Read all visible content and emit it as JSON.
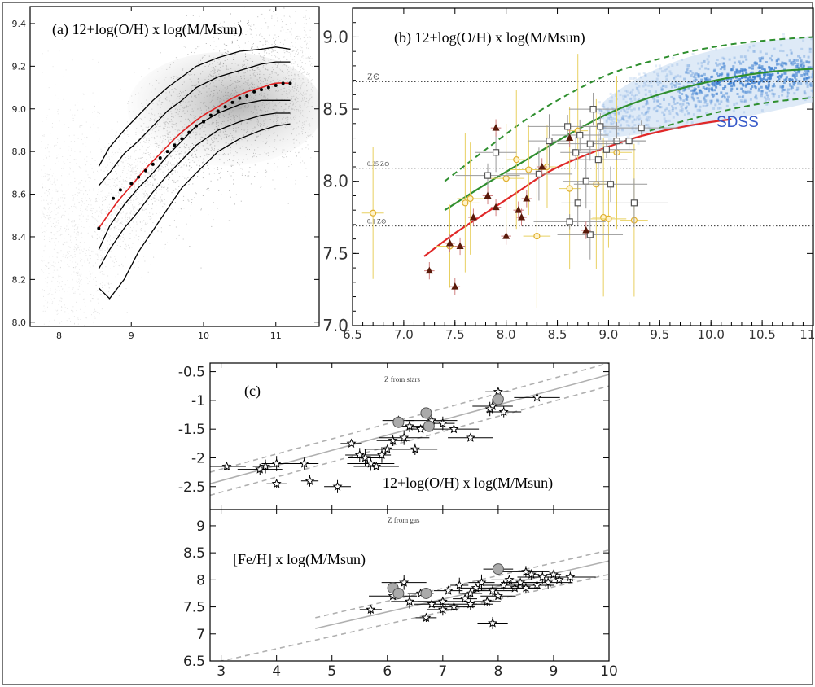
{
  "chart_data": [
    {
      "id": "a",
      "type": "scatter",
      "title": "(a) 12+log(O/H) x log(M/Msun)",
      "xlim": [
        7.6,
        11.6
      ],
      "ylim": [
        7.98,
        9.48
      ],
      "xticks": [
        "8",
        "9",
        "10",
        "11"
      ],
      "yticks": [
        "8.0",
        "8.2",
        "8.4",
        "8.6",
        "8.8",
        "9.0",
        "9.2",
        "9.4"
      ],
      "colors": {
        "points": "#9a9a9a",
        "contours": "#000000",
        "median_fit": "#e02020",
        "median_points": "#000000"
      },
      "contours": [
        {
          "x": [
            8.55,
            8.7,
            8.9,
            9.1,
            9.3,
            9.5,
            9.7,
            9.9,
            10.2,
            10.5,
            10.8,
            11.0,
            11.2
          ],
          "y": [
            8.73,
            8.82,
            8.9,
            8.97,
            9.04,
            9.1,
            9.15,
            9.2,
            9.24,
            9.27,
            9.28,
            9.29,
            9.28
          ]
        },
        {
          "x": [
            8.55,
            8.7,
            8.9,
            9.1,
            9.3,
            9.5,
            9.7,
            9.9,
            10.2,
            10.5,
            10.8,
            11.0,
            11.2
          ],
          "y": [
            8.64,
            8.7,
            8.79,
            8.85,
            8.92,
            8.99,
            9.04,
            9.1,
            9.15,
            9.18,
            9.21,
            9.22,
            9.22
          ]
        },
        {
          "x": [
            8.55,
            8.7,
            8.9,
            9.1,
            9.3,
            9.5,
            9.7,
            9.9,
            10.2,
            10.5,
            10.8,
            11.0,
            11.2
          ],
          "y": [
            8.34,
            8.45,
            8.55,
            8.63,
            8.7,
            8.78,
            8.85,
            8.92,
            8.98,
            9.02,
            9.04,
            9.04,
            9.04
          ]
        },
        {
          "x": [
            8.55,
            8.7,
            8.9,
            9.1,
            9.3,
            9.5,
            9.7,
            9.9,
            10.2,
            10.5,
            10.8,
            11.0,
            11.2
          ],
          "y": [
            8.25,
            8.34,
            8.44,
            8.52,
            8.61,
            8.69,
            8.76,
            8.83,
            8.9,
            8.94,
            8.97,
            8.98,
            8.98
          ]
        },
        {
          "x": [
            8.55,
            8.7,
            8.9,
            9.1,
            9.3,
            9.5,
            9.7,
            9.9,
            10.2,
            10.5,
            10.8,
            11.0,
            11.2
          ],
          "y": [
            8.16,
            8.11,
            8.2,
            8.33,
            8.43,
            8.53,
            8.63,
            8.7,
            8.8,
            8.86,
            8.9,
            8.92,
            8.93
          ]
        }
      ],
      "median_fit": {
        "x": [
          8.55,
          8.8,
          9.0,
          9.2,
          9.4,
          9.6,
          9.8,
          10.0,
          10.2,
          10.4,
          10.6,
          10.8,
          11.0,
          11.2
        ],
        "y": [
          8.44,
          8.56,
          8.64,
          8.72,
          8.79,
          8.86,
          8.92,
          8.97,
          9.01,
          9.05,
          9.08,
          9.1,
          9.12,
          9.12
        ]
      },
      "median_points": {
        "x": [
          8.55,
          8.75,
          8.85,
          9.0,
          9.1,
          9.2,
          9.3,
          9.4,
          9.5,
          9.6,
          9.7,
          9.8,
          9.9,
          10.0,
          10.1,
          10.2,
          10.3,
          10.4,
          10.5,
          10.6,
          10.7,
          10.8,
          10.9,
          11.0,
          11.1,
          11.2
        ],
        "y": [
          8.44,
          8.58,
          8.62,
          8.65,
          8.68,
          8.71,
          8.74,
          8.77,
          8.8,
          8.83,
          8.86,
          8.89,
          8.92,
          8.94,
          8.97,
          8.99,
          9.01,
          9.03,
          9.05,
          9.06,
          9.08,
          9.09,
          9.1,
          9.11,
          9.12,
          9.12
        ]
      }
    },
    {
      "id": "b",
      "type": "scatter",
      "title": "(b) 12+log(O/H) x log(M/Msun)",
      "xlim": [
        6.5,
        11.0
      ],
      "ylim": [
        7.0,
        9.2
      ],
      "xticks": [
        "6.5",
        "7.0",
        "7.5",
        "8.0",
        "8.5",
        "9.0",
        "9.5",
        "10.0",
        "10.5",
        "11.0"
      ],
      "yticks": [
        "7.0",
        "7.5",
        "8.0",
        "8.5",
        "9.0"
      ],
      "colors": {
        "green_fit": "#2f8f2f",
        "red_fit": "#e02828",
        "sdss": "#3d7fd0",
        "triangles": "#5a1a0a",
        "open_squares": "#555555",
        "open_circles": "#e0b030",
        "errorbars_yellow": "#e8d060",
        "errorbars_gray": "#999999"
      },
      "reference_lines": [
        {
          "y": 8.69,
          "label": "Z⊙"
        },
        {
          "y": 8.09,
          "label": "0.25 Z⊙"
        },
        {
          "y": 7.69,
          "label": "0.1 Z⊙"
        }
      ],
      "sdss_label": "SDSS",
      "green_fit": {
        "x": [
          7.4,
          7.8,
          8.2,
          8.6,
          9.0,
          9.4,
          9.8,
          10.2,
          10.6,
          11.0
        ],
        "y": [
          7.8,
          7.98,
          8.15,
          8.32,
          8.47,
          8.58,
          8.66,
          8.72,
          8.76,
          8.78
        ]
      },
      "green_upper": {
        "x": [
          7.4,
          7.8,
          8.2,
          8.6,
          9.0,
          9.4,
          9.8,
          10.2,
          10.6,
          11.0
        ],
        "y": [
          8.0,
          8.22,
          8.43,
          8.6,
          8.74,
          8.83,
          8.9,
          8.95,
          8.98,
          9.0
        ]
      },
      "green_lower": {
        "x": [
          9.4,
          9.8,
          10.2,
          10.6,
          11.0
        ],
        "y": [
          8.35,
          8.43,
          8.5,
          8.55,
          8.58
        ]
      },
      "red_fit": {
        "x": [
          7.2,
          7.5,
          7.8,
          8.1,
          8.4,
          8.7,
          9.0,
          9.3,
          9.6,
          9.9,
          10.2
        ],
        "y": [
          7.48,
          7.64,
          7.78,
          7.92,
          8.06,
          8.16,
          8.24,
          8.31,
          8.36,
          8.4,
          8.43
        ]
      },
      "triangles": {
        "x": [
          7.25,
          7.45,
          7.55,
          7.68,
          7.82,
          7.9,
          8.0,
          8.12,
          8.15,
          8.2,
          8.35,
          8.62,
          8.78,
          7.5,
          7.9
        ],
        "y": [
          7.38,
          7.57,
          7.55,
          7.75,
          7.9,
          7.82,
          7.62,
          7.8,
          7.75,
          7.88,
          8.1,
          8.3,
          7.66,
          7.27,
          8.37
        ]
      },
      "open_squares": {
        "x": [
          7.82,
          7.9,
          8.32,
          8.42,
          8.6,
          8.68,
          8.72,
          8.78,
          8.82,
          8.85,
          8.9,
          8.92,
          8.98,
          9.02,
          9.08,
          9.2,
          9.25,
          9.32,
          8.62,
          8.7,
          8.82
        ],
        "y": [
          8.04,
          8.2,
          8.05,
          8.28,
          8.38,
          8.2,
          8.32,
          8.0,
          8.26,
          8.5,
          8.15,
          8.38,
          8.22,
          7.98,
          8.28,
          8.28,
          7.85,
          8.37,
          7.72,
          7.85,
          7.63
        ]
      },
      "open_circles": {
        "x": [
          6.7,
          7.45,
          7.6,
          7.65,
          8.0,
          8.1,
          8.22,
          8.3,
          8.4,
          8.62,
          8.7,
          8.88,
          8.95,
          9.0,
          9.08,
          9.25
        ],
        "y": [
          7.78,
          7.55,
          7.85,
          7.88,
          8.02,
          8.15,
          8.08,
          7.62,
          8.1,
          7.95,
          8.35,
          7.98,
          7.75,
          7.74,
          8.2,
          7.73
        ]
      },
      "sdss_cloud": {
        "x_range": [
          8.9,
          11.0
        ],
        "y_center": [
          8.4,
          8.78
        ]
      }
    },
    {
      "id": "c",
      "type": "scatter",
      "panels": [
        {
          "label": "(c)",
          "subtitle": "Z from stars",
          "title": "12+log(O/H) x log(M/Msun)",
          "xlim": [
            2.8,
            10.0
          ],
          "ylim": [
            -2.9,
            -0.35
          ],
          "yticks": [
            "-0.5",
            "-1",
            "-1.5",
            "-2",
            "-2.5"
          ],
          "colors": {
            "fit": "#b0b0b0",
            "bounds": "#b0b0b0",
            "points": "#000000",
            "filled": "#aaaaaa"
          },
          "fit": {
            "x": [
              2.8,
              10.0
            ],
            "y": [
              -2.45,
              -0.55
            ]
          },
          "bounds": [
            {
              "x": [
                2.8,
                10.0
              ],
              "y": [
                -2.25,
                -0.35
              ]
            },
            {
              "x": [
                2.8,
                10.0
              ],
              "y": [
                -2.65,
                -0.75
              ]
            }
          ],
          "stars": {
            "x": [
              3.1,
              3.7,
              3.8,
              4.0,
              4.5,
              4.0,
              4.6,
              5.1,
              5.35,
              5.5,
              5.6,
              5.7,
              5.8,
              5.9,
              6.0,
              6.1,
              6.2,
              6.3,
              6.4,
              6.6,
              6.8,
              7.0,
              7.2,
              7.5,
              7.9,
              8.0,
              8.1,
              8.7,
              7.85,
              6.5
            ],
            "y": [
              -2.15,
              -2.2,
              -2.15,
              -2.1,
              -2.1,
              -2.45,
              -2.4,
              -2.5,
              -1.75,
              -1.95,
              -2.0,
              -2.1,
              -2.15,
              -1.95,
              -1.85,
              -1.7,
              -1.35,
              -1.65,
              -1.45,
              -1.5,
              -1.35,
              -1.4,
              -1.5,
              -1.65,
              -1.1,
              -0.85,
              -1.2,
              -0.95,
              -1.15,
              -1.85
            ]
          },
          "filled": {
            "x": [
              6.2,
              6.7,
              6.75,
              8.0
            ],
            "y": [
              -1.38,
              -1.22,
              -1.45,
              -0.98
            ]
          }
        },
        {
          "subtitle": "Z from gas",
          "title": "[Fe/H] x log(M/Msun)",
          "xlim": [
            2.8,
            10.0
          ],
          "ylim": [
            6.5,
            9.3
          ],
          "xticks": [
            "3",
            "4",
            "5",
            "6",
            "7",
            "8",
            "9",
            "10"
          ],
          "yticks": [
            "6.5",
            "7",
            "7.5",
            "8",
            "8.5",
            "9"
          ],
          "fit": {
            "x": [
              4.7,
              10.0
            ],
            "y": [
              7.1,
              8.35
            ]
          },
          "bounds": [
            {
              "x": [
                4.7,
                10.0
              ],
              "y": [
                7.3,
                8.55
              ]
            },
            {
              "x": [
                2.8,
                10.0
              ],
              "y": [
                6.45,
                8.1
              ]
            }
          ],
          "stars": {
            "x": [
              5.7,
              6.1,
              6.4,
              6.6,
              6.8,
              7.0,
              7.1,
              7.2,
              7.3,
              7.4,
              7.5,
              7.6,
              7.7,
              7.8,
              7.9,
              8.0,
              8.1,
              8.2,
              8.3,
              8.4,
              8.5,
              8.6,
              8.7,
              8.8,
              8.9,
              9.0,
              9.1,
              9.3,
              6.7,
              7.9,
              8.5,
              6.3,
              7.0,
              7.5,
              8.0
            ],
            "y": [
              7.45,
              7.7,
              7.6,
              7.75,
              7.55,
              7.6,
              7.8,
              7.5,
              7.9,
              7.65,
              7.75,
              7.85,
              7.95,
              7.6,
              7.8,
              7.7,
              7.9,
              8.0,
              7.85,
              7.95,
              7.85,
              8.1,
              7.9,
              8.05,
              7.95,
              8.1,
              8.0,
              8.05,
              7.3,
              7.2,
              8.15,
              7.95,
              7.45,
              7.55,
              8.2
            ]
          },
          "filled": {
            "x": [
              6.1,
              6.2,
              6.7,
              8.0
            ],
            "y": [
              7.85,
              7.75,
              7.75,
              8.2
            ]
          }
        }
      ]
    }
  ]
}
